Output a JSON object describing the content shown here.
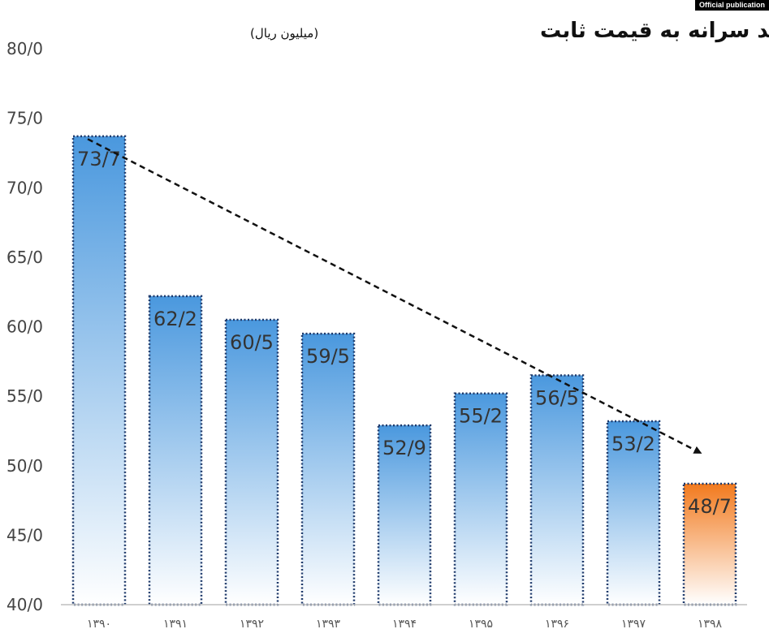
{
  "badge": "Official publication",
  "colors": {
    "bar_top": "#4a98de",
    "bar_bottom": "#ffffff",
    "highlight_top": "#f27a1e",
    "highlight_bottom": "#ffffff",
    "bar_border": "#1f3a6b",
    "trend": "#111111"
  },
  "chart_data": {
    "type": "bar",
    "title": "درآمد سرانه به قیمت ثابت",
    "subtitle": "(میلیون ریال)",
    "categories": [
      "۱۳۹۰",
      "۱۳۹۱",
      "۱۳۹۲",
      "۱۳۹۳",
      "۱۳۹۴",
      "۱۳۹۵",
      "۱۳۹۶",
      "۱۳۹۷",
      "۱۳۹۸"
    ],
    "values": [
      73.7,
      62.2,
      60.5,
      59.5,
      52.9,
      55.2,
      56.5,
      53.2,
      48.7
    ],
    "data_labels": [
      "73/7",
      "62/2",
      "60/5",
      "59/5",
      "52/9",
      "55/2",
      "56/5",
      "53/2",
      "48/7"
    ],
    "highlight_category": "۱۳۹۸",
    "ylim": [
      40,
      80
    ],
    "yticks": [
      40,
      45,
      50,
      55,
      60,
      65,
      70,
      75,
      80
    ],
    "ytick_labels": [
      "40/0",
      "45/0",
      "50/0",
      "55/0",
      "60/0",
      "65/0",
      "70/0",
      "75/0",
      "80/0"
    ],
    "trend_line": {
      "from_category": "۱۳۹۰",
      "from_value": 73.5,
      "to_category": "۱۳۹۸",
      "to_value": 51.0,
      "style": "dashed-arrow"
    },
    "grid": false,
    "xlabel": "",
    "ylabel": ""
  }
}
